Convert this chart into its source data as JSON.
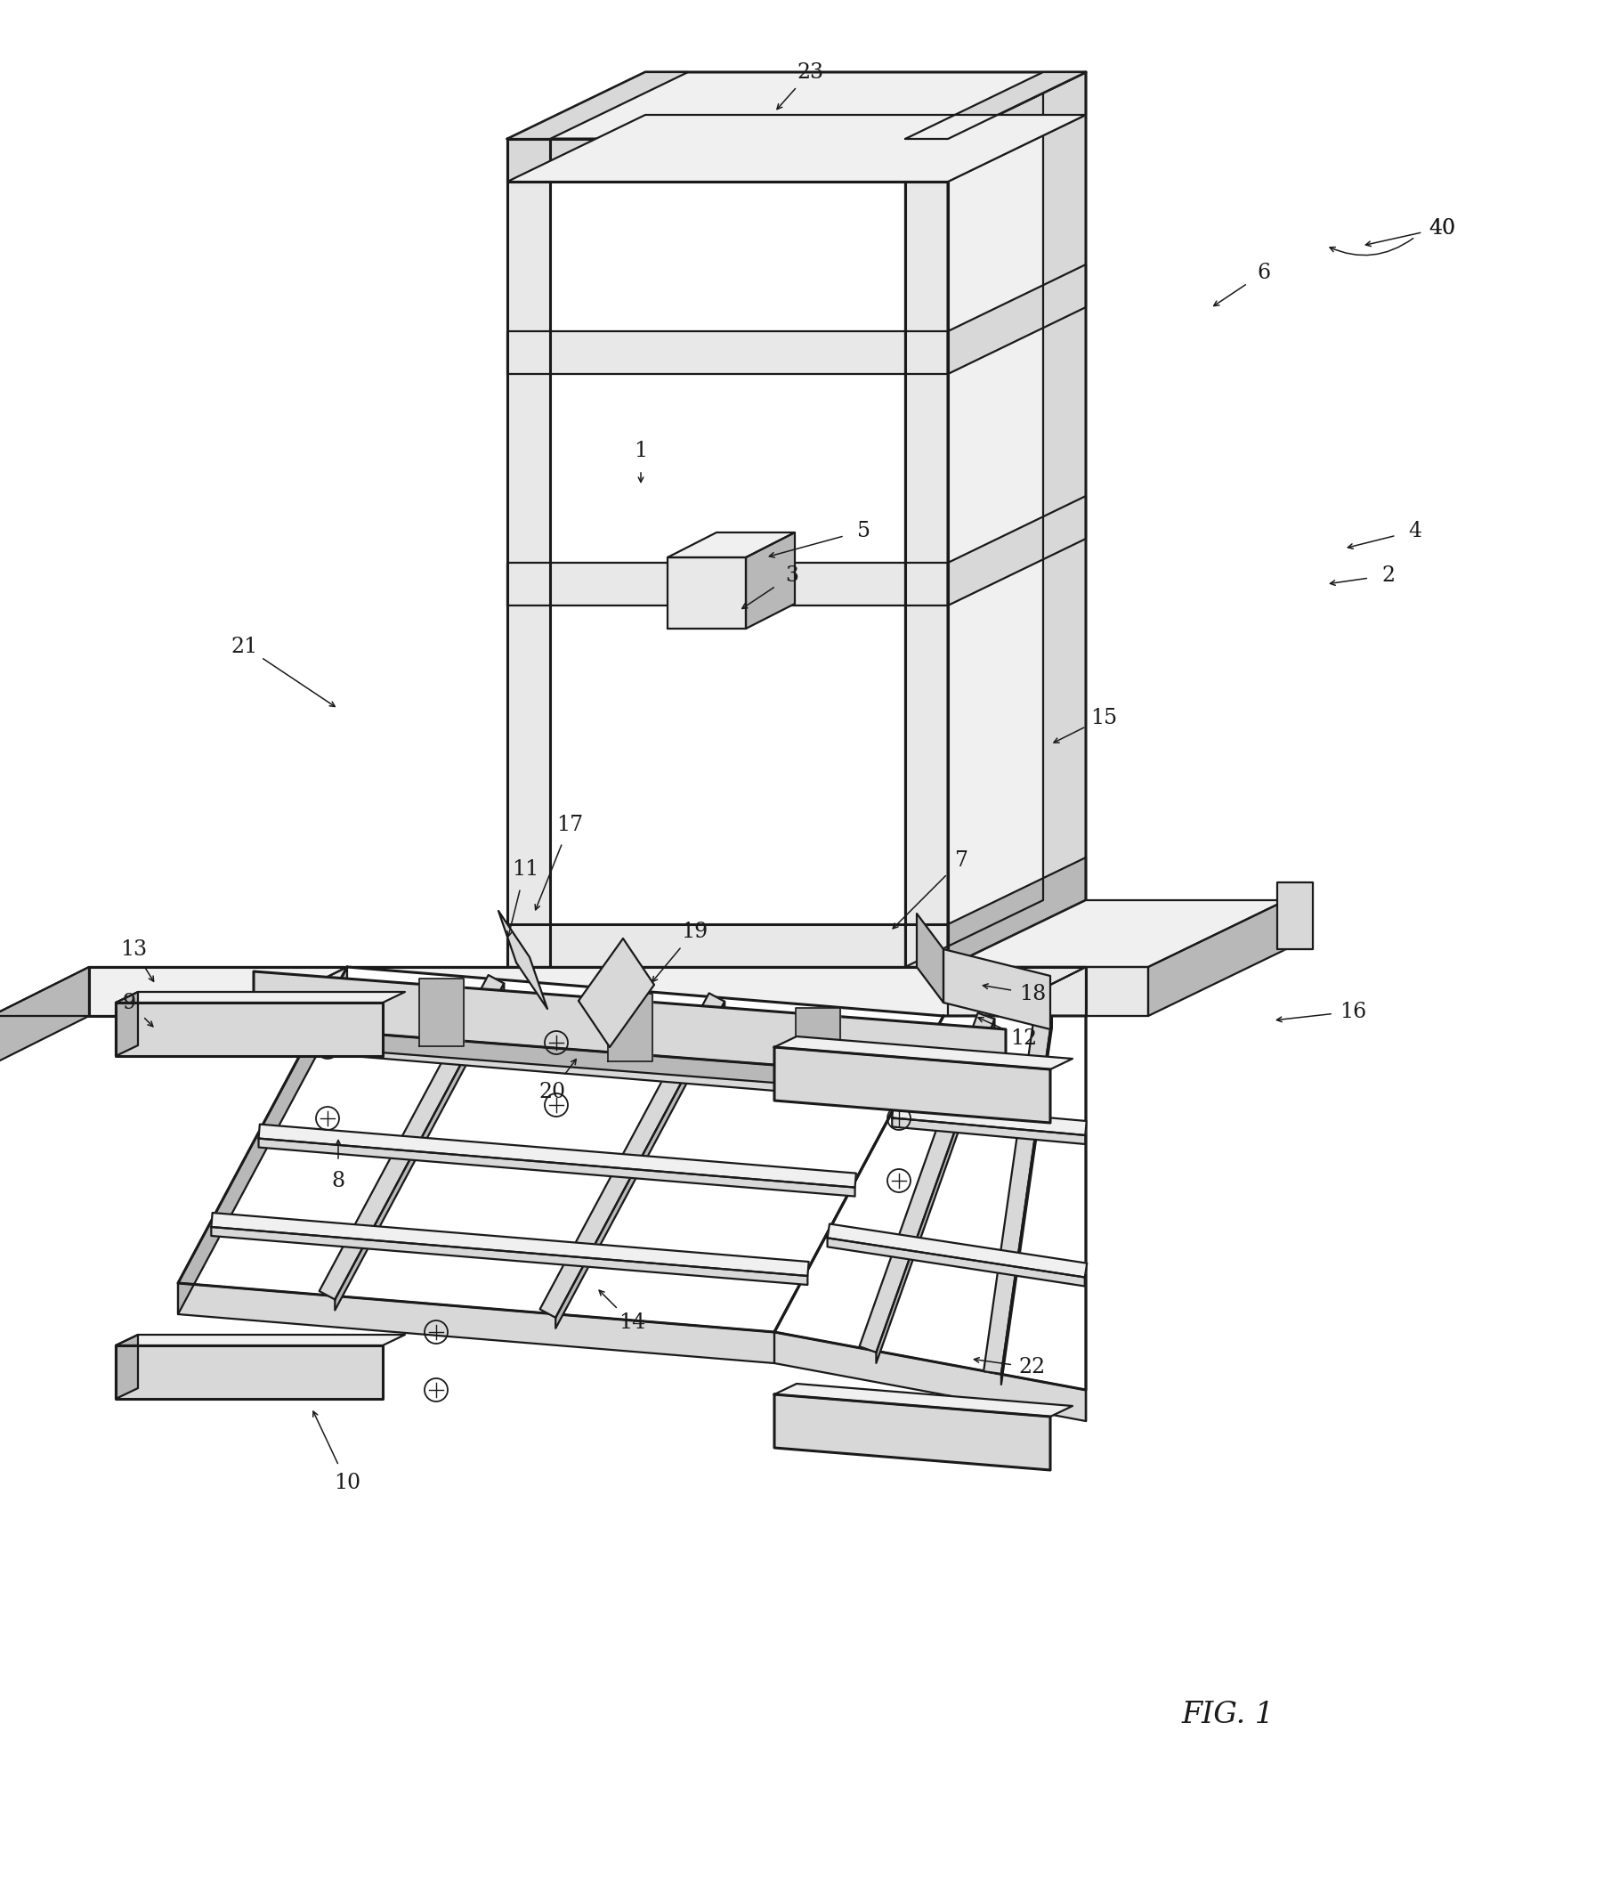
{
  "bg_color": "#ffffff",
  "line_color": "#1a1a1a",
  "lw": 1.6,
  "lw_thick": 2.2,
  "fig_label": "FIG. 1",
  "label_size": 17,
  "fig_label_size": 24
}
